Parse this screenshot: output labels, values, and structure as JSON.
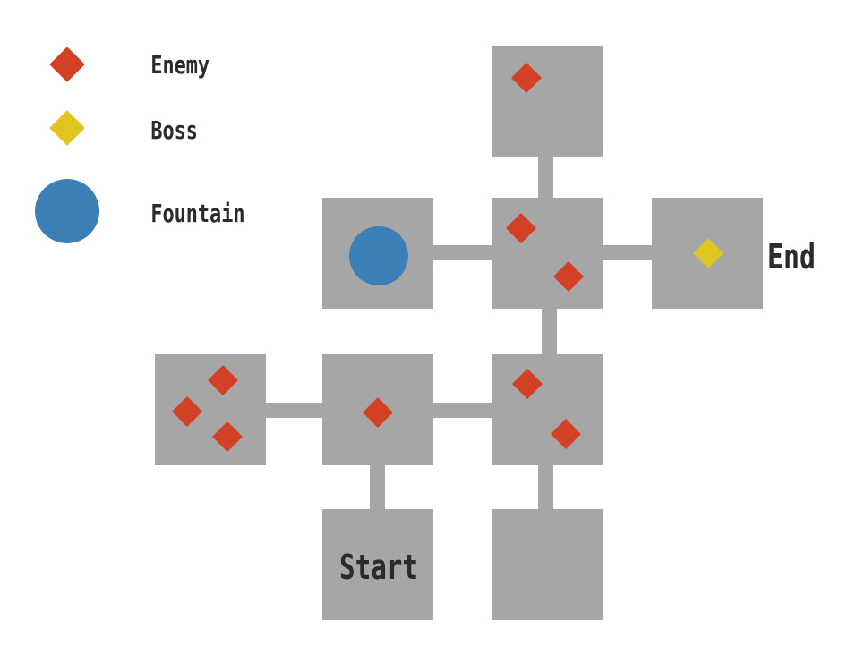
{
  "legend": {
    "enemy_label": "Enemy",
    "boss_label": "Boss",
    "fountain_label": "Fountain"
  },
  "labels": {
    "start": "Start",
    "end": "End"
  },
  "colors": {
    "room": "#a6a6a6",
    "enemy": "#d24126",
    "boss": "#e0c41f",
    "fountain": "#3c7fb6",
    "text": "#2b2b2b"
  }
}
